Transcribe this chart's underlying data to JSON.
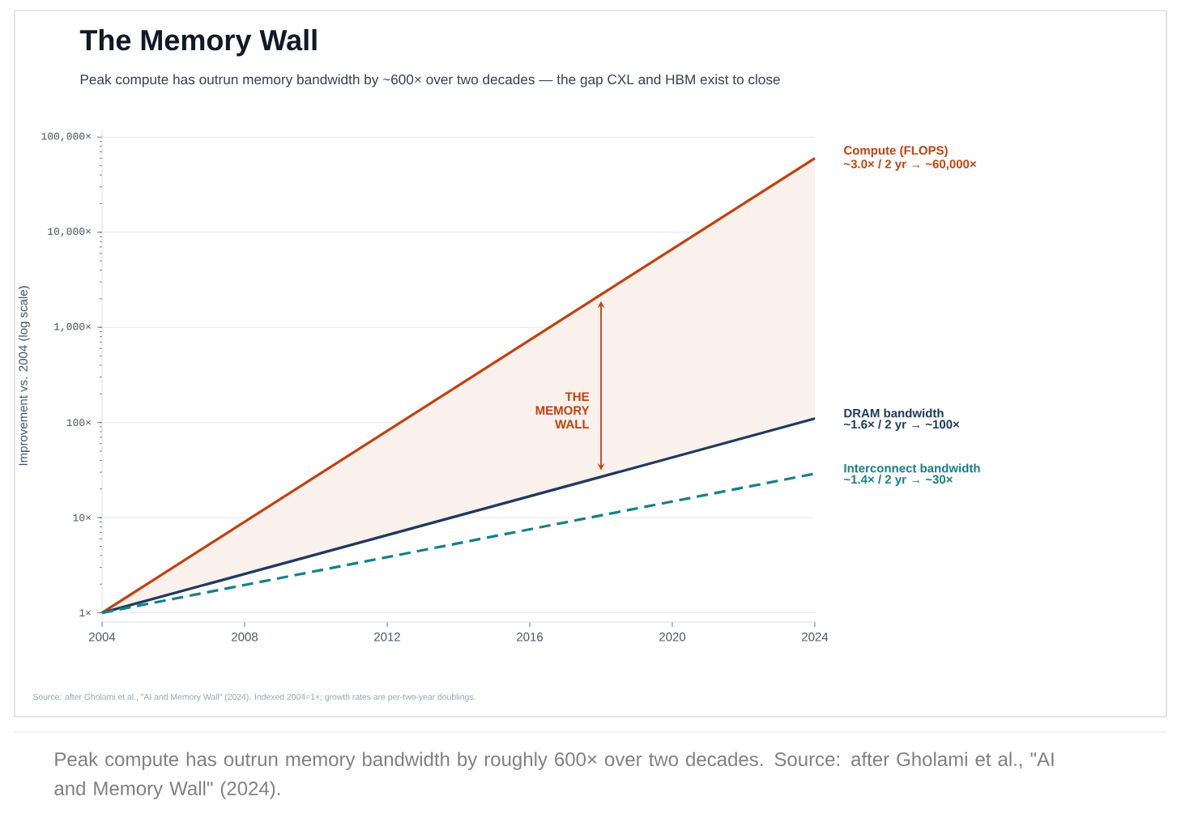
{
  "chart_data": {
    "type": "line",
    "title": "The Memory Wall",
    "subtitle": "Peak compute has outrun memory bandwidth by ~600× over two decades — the gap CXL and HBM exist to close",
    "ylabel": "Improvement vs. 2004 (log scale)",
    "x": [
      2004,
      2024
    ],
    "xlim": [
      2004,
      2024
    ],
    "xticks": [
      2004,
      2008,
      2012,
      2016,
      2020,
      2024
    ],
    "ylim": [
      0.8,
      120000
    ],
    "yticks": [
      {
        "value": 1,
        "label": "1×"
      },
      {
        "value": 10,
        "label": "10×"
      },
      {
        "value": 100,
        "label": "100×"
      },
      {
        "value": 1000,
        "label": "1,000×"
      },
      {
        "value": 10000,
        "label": "10,000×"
      },
      {
        "value": 100000,
        "label": "100,000×"
      }
    ],
    "log": "y",
    "grid": "y",
    "marker": "none",
    "line_style": "solid",
    "series": [
      {
        "name": "Compute (FLOPS)",
        "color": "#c2410c",
        "values": [
          1,
          60000
        ],
        "lower": [
          1,
          110
        ],
        "upper": [
          1,
          60000
        ]
      },
      {
        "name": "DRAM bandwidth",
        "color": "#1e3a5f",
        "values": [
          1,
          110
        ]
      },
      {
        "name": "Interconnect bandwidth",
        "color": "#13808a",
        "values": [
          1,
          29
        ],
        "line_style": "dashed"
      }
    ],
    "annotations": [
      "~3.0× / 2 yr → ~60,000×",
      "~1.6× / 2 yr → ~100×",
      "~1.4× / 2 yr → ~30×",
      "THE MEMORY WALL",
      "Source: after Gholami et al., \"AI and Memory Wall\" (2024). Indexed 2004=1×; growth rates are per-two-year doublings.",
      "Peak compute has outrun memory bandwidth by roughly 600× over two decades. Source: after Gholami et al., \"AI and Memory Wall\" (2024)."
    ]
  }
}
